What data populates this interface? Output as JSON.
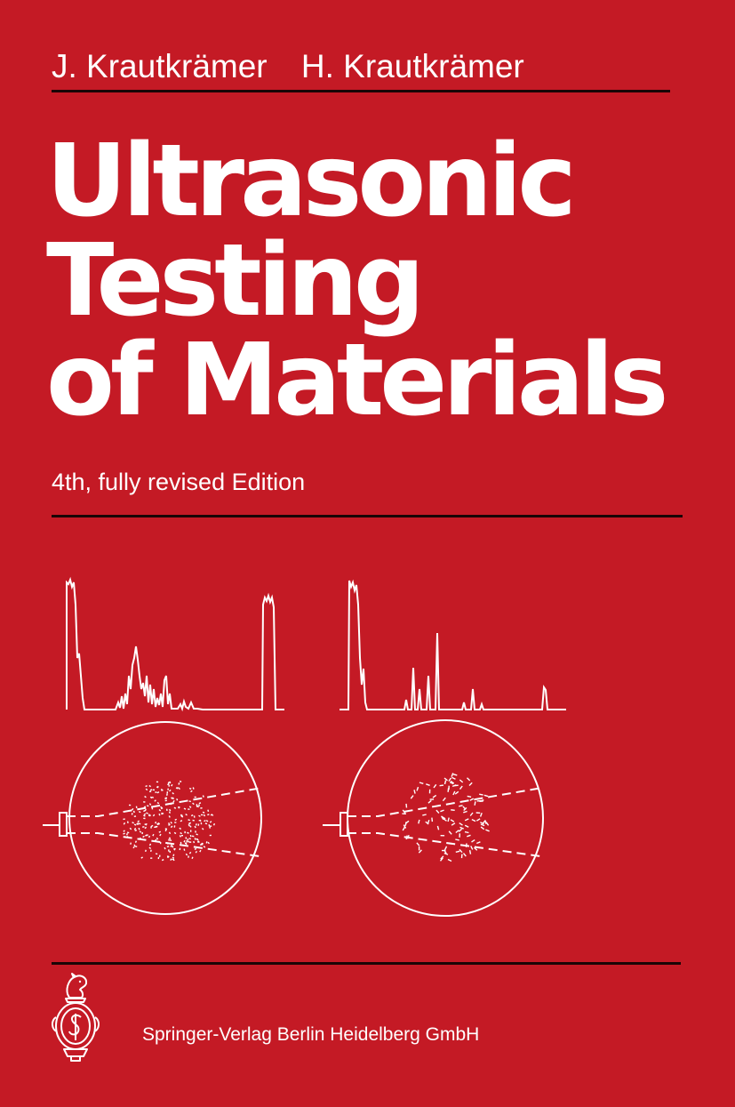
{
  "cover": {
    "authors": [
      "J. Krautkrämer",
      "H. Krautkrämer"
    ],
    "title_lines": [
      "Ultrasonic",
      "Testing",
      "of Materials"
    ],
    "edition": "4th, fully revised Edition",
    "publisher": "Springer-Verlag Berlin Heidelberg GmbH",
    "colors": {
      "background": "#c41a25",
      "text": "#ffffff",
      "rules": "#1a0506"
    },
    "icons": {
      "logo": "springer-knight-chess-piece-icon",
      "illustration": "ultrasonic-echo-signal-and-beam-diagram"
    }
  }
}
